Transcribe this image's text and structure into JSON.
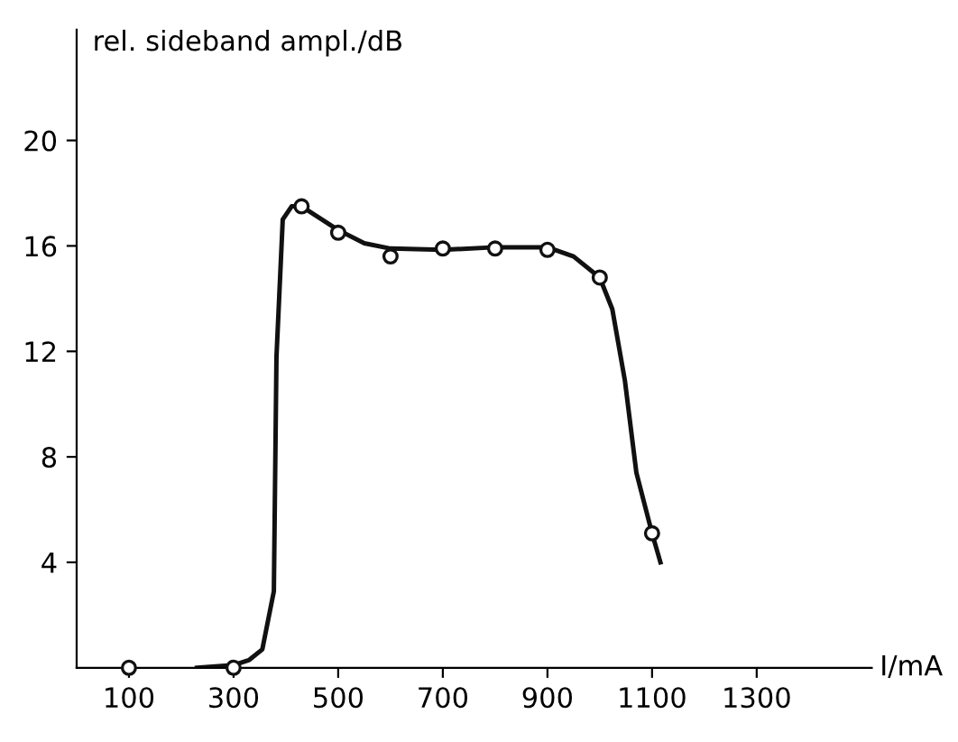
{
  "chart_data": {
    "type": "line",
    "xlabel": "I/mA",
    "ylabel": "rel. sideband ampl./dB",
    "xlim": [
      0,
      1520
    ],
    "ylim": [
      0,
      24.2
    ],
    "xticks": [
      100,
      300,
      500,
      700,
      900,
      1100,
      1300
    ],
    "yticks": [
      4,
      8,
      12,
      16,
      20
    ],
    "grid": false,
    "legend": false,
    "series": [
      {
        "color": "#111111",
        "marker": "none",
        "line_style": "solid",
        "x": [
          230,
          300,
          330,
          355,
          377,
          382,
          394,
          411,
          430,
          500,
          550,
          600,
          700,
          800,
          900,
          950,
          1000,
          1024,
          1048,
          1070,
          1100,
          1116
        ],
        "values": [
          0,
          0.1,
          0.3,
          0.7,
          2.9,
          11.8,
          17.0,
          17.5,
          17.5,
          16.6,
          16.1,
          15.9,
          15.85,
          15.95,
          15.95,
          15.6,
          14.8,
          13.6,
          10.9,
          7.4,
          5.1,
          4.0
        ]
      },
      {
        "type": "scatter",
        "color": "#111111",
        "marker": "circle",
        "x": [
          100,
          300,
          430,
          500,
          600,
          700,
          800,
          900,
          1000,
          1100
        ],
        "values": [
          0,
          0,
          17.5,
          16.5,
          15.6,
          15.9,
          15.9,
          15.85,
          14.8,
          5.1
        ]
      }
    ]
  }
}
